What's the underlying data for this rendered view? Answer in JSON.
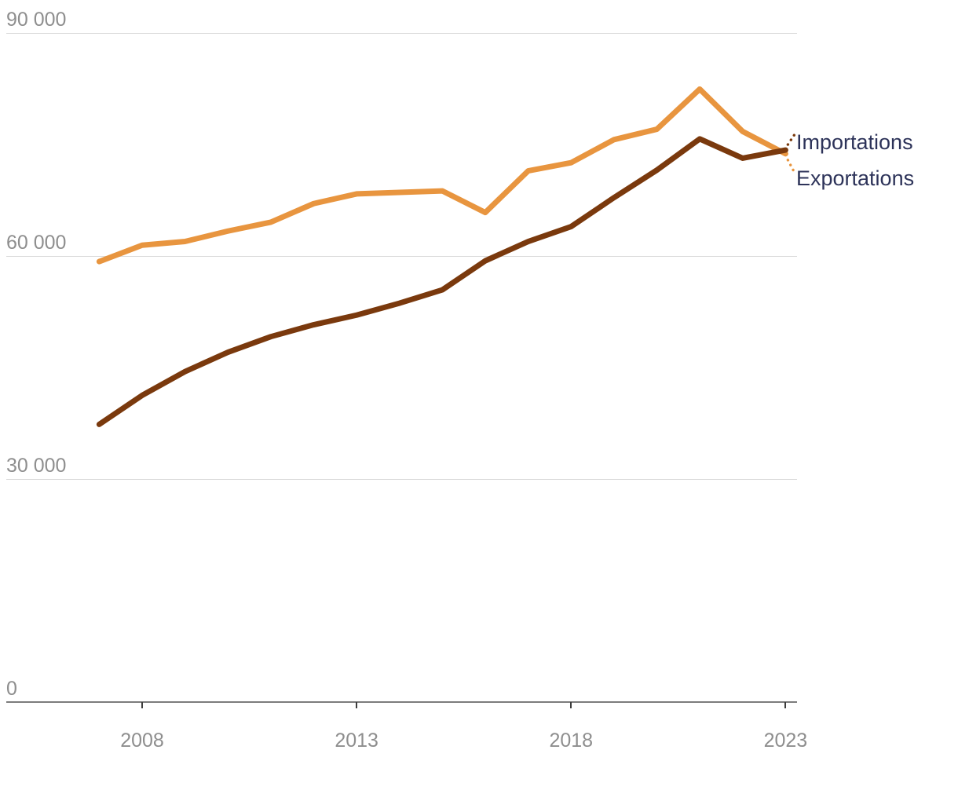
{
  "chart_data": {
    "type": "line",
    "title": "",
    "xlabel": "",
    "ylabel": "",
    "x": [
      2007,
      2008,
      2009,
      2010,
      2011,
      2012,
      2013,
      2014,
      2015,
      2016,
      2017,
      2018,
      2019,
      2020,
      2021,
      2022,
      2023
    ],
    "series": [
      {
        "name": "Importations",
        "color": "#7A390D",
        "values": [
          37300,
          41200,
          44400,
          47000,
          49100,
          50700,
          52000,
          53600,
          55400,
          59300,
          61900,
          63900,
          67800,
          71500,
          75700,
          73100,
          74200
        ]
      },
      {
        "name": "Exportations",
        "color": "#E8953F",
        "values": [
          59200,
          61400,
          61900,
          63300,
          64500,
          67000,
          68300,
          68500,
          68700,
          65800,
          71400,
          72500,
          75600,
          77000,
          82400,
          76700,
          73700
        ]
      }
    ],
    "y_ticks": [
      {
        "value": 90000,
        "label": "90 000"
      },
      {
        "value": 60000,
        "label": "60 000"
      },
      {
        "value": 30000,
        "label": "30 000"
      },
      {
        "value": 0,
        "label": "0"
      }
    ],
    "x_ticks": [
      {
        "value": 2008,
        "label": "2008"
      },
      {
        "value": 2013,
        "label": "2013"
      },
      {
        "value": 2018,
        "label": "2018"
      },
      {
        "value": 2023,
        "label": "2023"
      }
    ],
    "ylim": [
      0,
      90000
    ],
    "xlim": [
      2007,
      2023
    ],
    "grid": "horizontal",
    "legend_position": "line-end-labels-right"
  },
  "colors": {
    "importations": "#7A390D",
    "exportations": "#E8953F",
    "axis_text": "#8E8E8E",
    "series_label_text": "#2D3359",
    "gridline": "#DADADA",
    "axis_line": "#7C7C7C",
    "tick_mark": "#3D3D3D",
    "background": "#FFFFFF"
  }
}
